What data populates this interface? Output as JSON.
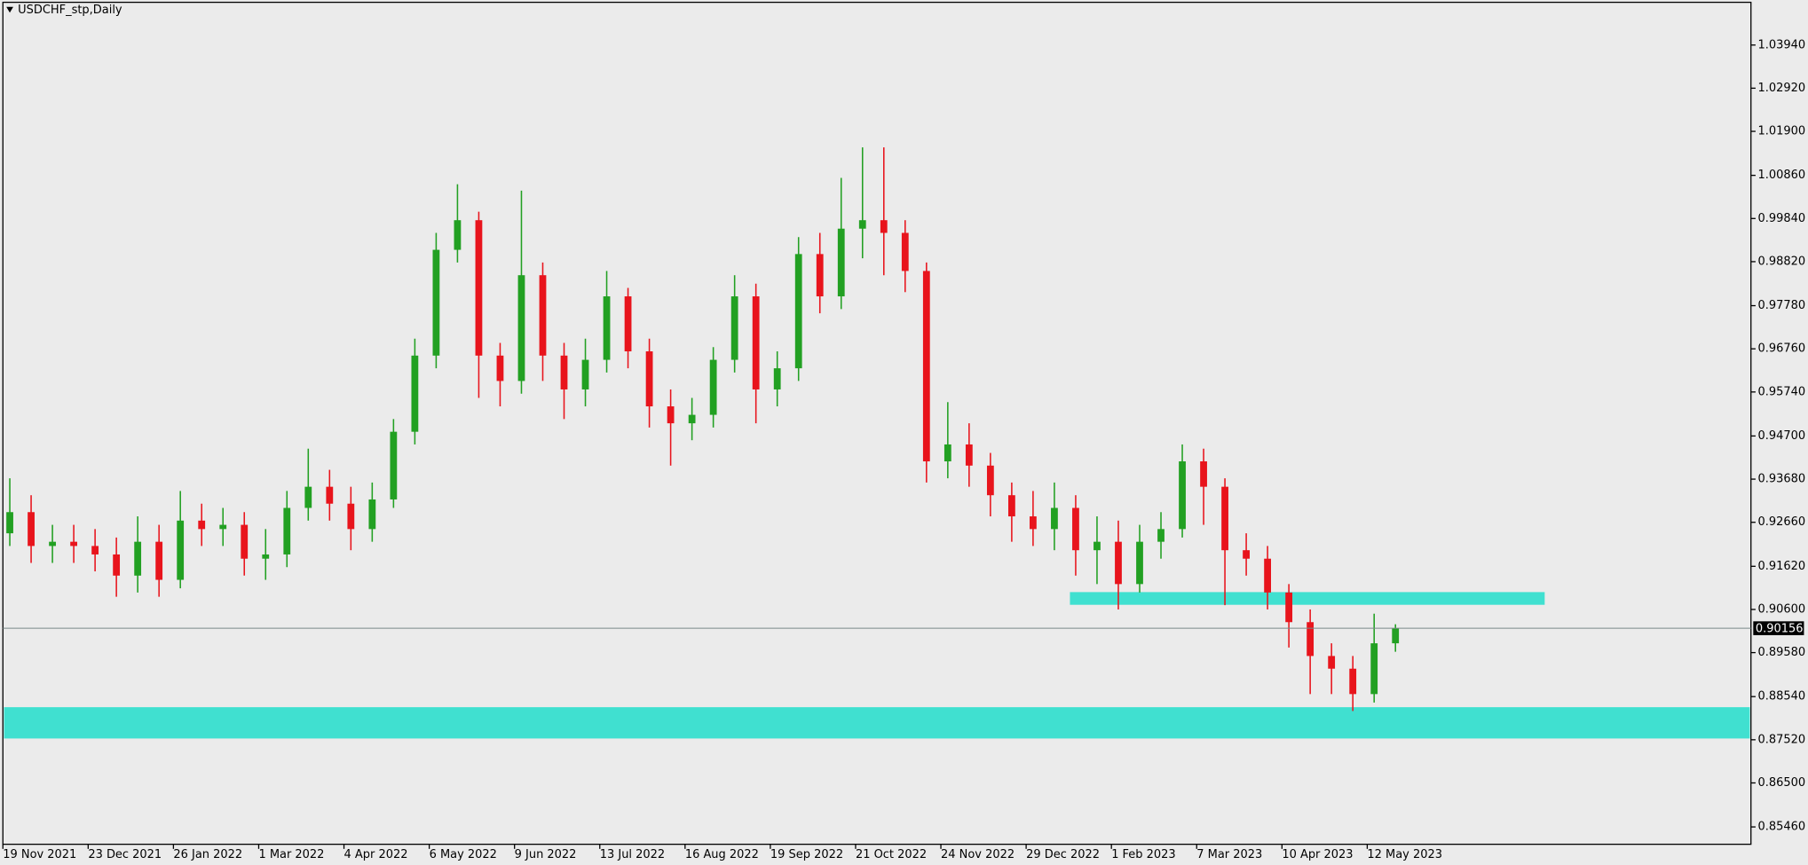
{
  "chart_data": {
    "type": "candlestick",
    "title": "USDCHF_stp,Daily",
    "categories": [
      "19 Nov 2021",
      null,
      null,
      null,
      "23 Dec 2021",
      null,
      null,
      null,
      "26 Jan 2022",
      null,
      null,
      null,
      "1 Mar 2022",
      null,
      null,
      null,
      "4 Apr 2022",
      null,
      null,
      null,
      "6 May 2022",
      null,
      null,
      null,
      "9 Jun 2022",
      null,
      null,
      null,
      "13 Jul 2022",
      null,
      null,
      null,
      "16 Aug 2022",
      null,
      null,
      null,
      "19 Sep 2022",
      null,
      null,
      null,
      "21 Oct 2022",
      null,
      null,
      null,
      "24 Nov 2022",
      null,
      null,
      null,
      "29 Dec 2022",
      null,
      null,
      null,
      "1 Feb 2023",
      null,
      null,
      null,
      "7 Mar 2023",
      null,
      null,
      null,
      "10 Apr 2023",
      null,
      null,
      null,
      "12 May 2023",
      null
    ],
    "open": [
      0.924,
      0.929,
      0.921,
      0.922,
      0.921,
      0.919,
      0.914,
      0.922,
      0.913,
      0.927,
      0.925,
      0.926,
      0.918,
      0.919,
      0.93,
      0.935,
      0.931,
      0.925,
      0.932,
      0.948,
      0.966,
      0.991,
      0.998,
      0.966,
      0.96,
      0.985,
      0.966,
      0.958,
      0.965,
      0.98,
      0.967,
      0.954,
      0.95,
      0.952,
      0.965,
      0.98,
      0.958,
      0.963,
      0.99,
      0.98,
      0.996,
      0.998,
      0.995,
      0.986,
      0.941,
      0.945,
      0.94,
      0.933,
      0.928,
      0.925,
      0.93,
      0.92,
      0.922,
      0.912,
      0.922,
      0.925,
      0.941,
      0.935,
      0.92,
      0.918,
      0.91,
      0.903,
      0.895,
      0.892,
      0.886,
      0.898
    ],
    "high": [
      0.937,
      0.933,
      0.926,
      0.926,
      0.925,
      0.923,
      0.928,
      0.926,
      0.934,
      0.931,
      0.93,
      0.929,
      0.925,
      0.934,
      0.944,
      0.939,
      0.935,
      0.936,
      0.951,
      0.97,
      0.995,
      1.0065,
      1.0,
      0.969,
      1.005,
      0.988,
      0.969,
      0.97,
      0.986,
      0.982,
      0.97,
      0.958,
      0.956,
      0.968,
      0.985,
      0.983,
      0.967,
      0.994,
      0.995,
      1.008,
      1.0152,
      1.0152,
      0.998,
      0.988,
      0.955,
      0.95,
      0.943,
      0.936,
      0.934,
      0.936,
      0.933,
      0.928,
      0.927,
      0.926,
      0.929,
      0.945,
      0.944,
      0.937,
      0.924,
      0.921,
      0.912,
      0.906,
      0.898,
      0.895,
      0.905,
      0.9025
    ],
    "low": [
      0.921,
      0.917,
      0.917,
      0.917,
      0.915,
      0.909,
      0.91,
      0.909,
      0.911,
      0.921,
      0.921,
      0.914,
      0.913,
      0.916,
      0.927,
      0.927,
      0.92,
      0.922,
      0.93,
      0.945,
      0.963,
      0.988,
      0.956,
      0.954,
      0.957,
      0.96,
      0.951,
      0.954,
      0.962,
      0.963,
      0.949,
      0.94,
      0.946,
      0.949,
      0.962,
      0.95,
      0.954,
      0.96,
      0.976,
      0.977,
      0.989,
      0.985,
      0.981,
      0.936,
      0.937,
      0.935,
      0.928,
      0.922,
      0.921,
      0.92,
      0.914,
      0.912,
      0.906,
      0.91,
      0.918,
      0.923,
      0.926,
      0.907,
      0.914,
      0.906,
      0.897,
      0.886,
      0.886,
      0.882,
      0.884,
      0.896
    ],
    "close": [
      0.929,
      0.921,
      0.922,
      0.921,
      0.919,
      0.914,
      0.922,
      0.913,
      0.927,
      0.925,
      0.926,
      0.918,
      0.919,
      0.93,
      0.935,
      0.931,
      0.925,
      0.932,
      0.948,
      0.966,
      0.991,
      0.998,
      0.966,
      0.96,
      0.985,
      0.966,
      0.958,
      0.965,
      0.98,
      0.967,
      0.954,
      0.95,
      0.952,
      0.965,
      0.98,
      0.958,
      0.963,
      0.99,
      0.98,
      0.996,
      0.998,
      0.995,
      0.986,
      0.941,
      0.945,
      0.94,
      0.933,
      0.928,
      0.925,
      0.93,
      0.92,
      0.922,
      0.912,
      0.922,
      0.925,
      0.941,
      0.935,
      0.92,
      0.918,
      0.91,
      0.903,
      0.895,
      0.892,
      0.886,
      0.898,
      0.90156
    ],
    "up_color": "#22a022",
    "down_color": "#e8141c",
    "ylim": [
      0.8505,
      1.0495
    ],
    "yticks": [
      {
        "value": 1.0394,
        "label": "1.03940"
      },
      {
        "value": 1.0292,
        "label": "1.02920"
      },
      {
        "value": 1.019,
        "label": "1.01900"
      },
      {
        "value": 1.0086,
        "label": "1.00860"
      },
      {
        "value": 0.9984,
        "label": "0.99840"
      },
      {
        "value": 0.9882,
        "label": "0.98820"
      },
      {
        "value": 0.9778,
        "label": "0.97780"
      },
      {
        "value": 0.9676,
        "label": "0.96760"
      },
      {
        "value": 0.9574,
        "label": "0.95740"
      },
      {
        "value": 0.947,
        "label": "0.94700"
      },
      {
        "value": 0.9368,
        "label": "0.93680"
      },
      {
        "value": 0.9266,
        "label": "0.92660"
      },
      {
        "value": 0.9162,
        "label": "0.91620"
      },
      {
        "value": 0.906,
        "label": "0.90600"
      },
      {
        "value": 0.8958,
        "label": "0.89580"
      },
      {
        "value": 0.8854,
        "label": "0.88540"
      },
      {
        "value": 0.8752,
        "label": "0.87520"
      },
      {
        "value": 0.865,
        "label": "0.86500"
      },
      {
        "value": 0.8546,
        "label": "0.85460"
      }
    ],
    "current_price": 0.90156,
    "zones": [
      {
        "low": 0.9071,
        "high": 0.9101,
        "x_range": [
          50,
          72
        ],
        "color": "#40e0d0"
      },
      {
        "low": 0.8755,
        "high": 0.8829,
        "color": "#40e0d0"
      }
    ]
  }
}
